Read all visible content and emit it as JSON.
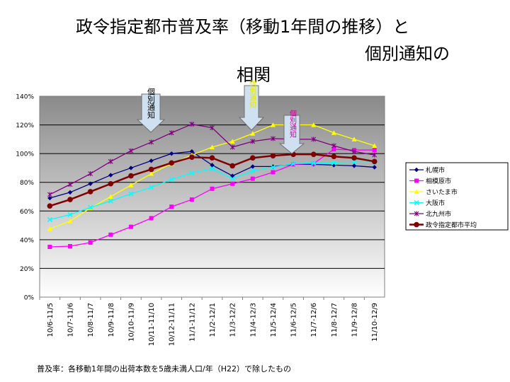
{
  "title": {
    "line1": "政令指定都市普及率（移動1年間の推移）と",
    "line2": "個別通知の",
    "line3": "相関"
  },
  "footnote": "普及率：各移動1年間の出荷本数を5歳未満人口/年（H22）で除したもの",
  "callouts": [
    {
      "label": "個別通知",
      "at_category": "10/11-11/10",
      "fill": "#cfe0f0"
    },
    {
      "label": "個別通知",
      "at_category": "11/4-12/3",
      "fill": "#cfe0f0",
      "text_color": "#e8e800"
    },
    {
      "label": "個別通知",
      "at_category": "11/6-12/5",
      "fill": "#cfe0f0",
      "text_color": "#cc0099"
    }
  ],
  "chart_data": {
    "type": "line",
    "categories": [
      "10/6-11/5",
      "10/7-11/6",
      "10/8-11/7",
      "10/9-11/8",
      "10/10-11/9",
      "10/11-11/10",
      "10/12-11/11",
      "11/1-11/12",
      "11/2-12/1",
      "11/3-12/2",
      "11/4-12/3",
      "11/5-12/4",
      "11/6-12/5",
      "11/7-12/6",
      "11/8-12/7",
      "11/9-12/8",
      "11/10-12/9"
    ],
    "y_ticks": [
      "0%",
      "20%",
      "40%",
      "60%",
      "80%",
      "100%",
      "120%",
      "140%"
    ],
    "ylim": [
      0,
      140
    ],
    "legend_position": "right",
    "grid": true,
    "series": [
      {
        "name": "札幌市",
        "color": "#000080",
        "marker": "diamond",
        "values": [
          69,
          73,
          79,
          85,
          90,
          95,
          100,
          101.5,
          92,
          84.5,
          91,
          91,
          92.5,
          92.5,
          92,
          91.5,
          90.5
        ]
      },
      {
        "name": "相模原市",
        "color": "#ff00ff",
        "marker": "square",
        "values": [
          35,
          35.5,
          38,
          43.5,
          49,
          55,
          63,
          68,
          75.5,
          79,
          82.5,
          87,
          92.5,
          93,
          103,
          102.5,
          102.5
        ]
      },
      {
        "name": "さいたま市",
        "color": "#ffff00",
        "marker": "triangle",
        "values": [
          47.5,
          53,
          62,
          70,
          78,
          86,
          93,
          99,
          104.5,
          108.5,
          114,
          120,
          120,
          120,
          114.5,
          110,
          105.5
        ]
      },
      {
        "name": "大阪市",
        "color": "#00ffff",
        "marker": "x",
        "values": [
          54,
          57.5,
          62.5,
          67,
          72,
          76.5,
          82,
          86.5,
          89.5,
          82.5,
          88,
          90.5,
          93,
          93.5,
          93.5,
          94,
          94
        ]
      },
      {
        "name": "北九州市",
        "color": "#800080",
        "marker": "star",
        "values": [
          71.5,
          78.5,
          86,
          94.5,
          102,
          108,
          114.5,
          120.5,
          118,
          104.5,
          108.5,
          110.5,
          110,
          110,
          105.5,
          101.5,
          99
        ]
      },
      {
        "name": "政令指定都市平均",
        "color": "#800000",
        "marker": "circle",
        "values": [
          63.5,
          68,
          73.5,
          79,
          84.5,
          89,
          93.5,
          97.5,
          97,
          91.5,
          97,
          98.5,
          99.5,
          99.5,
          98,
          97,
          94.5
        ]
      }
    ]
  }
}
